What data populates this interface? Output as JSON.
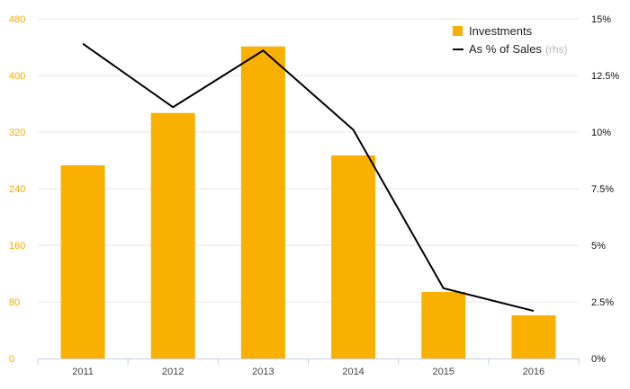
{
  "chart_data": {
    "type": "bar+line",
    "categories": [
      "2011",
      "2012",
      "2013",
      "2014",
      "2015",
      "2016"
    ],
    "series": [
      {
        "name": "Investments",
        "type": "bar",
        "axis": "left",
        "color": "#F9B000",
        "values": [
          273,
          347,
          441,
          287,
          94,
          61
        ]
      },
      {
        "name": "As % of Sales",
        "name_suffix": "(rhs)",
        "type": "line",
        "axis": "right",
        "color": "#000000",
        "values": [
          13.9,
          11.1,
          13.6,
          10.1,
          3.1,
          2.1
        ]
      }
    ],
    "y_left": {
      "ylim": [
        0,
        480
      ],
      "ticks": [
        0,
        80,
        160,
        240,
        320,
        400,
        480
      ],
      "tick_color": "#F5A800"
    },
    "y_right": {
      "ylim": [
        0,
        15
      ],
      "ticks": [
        0,
        2.5,
        5,
        7.5,
        10,
        12.5,
        15
      ],
      "tick_labels": [
        "0%",
        "2.5%",
        "5%",
        "7.5%",
        "10%",
        "12.5%",
        "15%"
      ]
    },
    "grid": true,
    "legend_position": "top-right"
  }
}
